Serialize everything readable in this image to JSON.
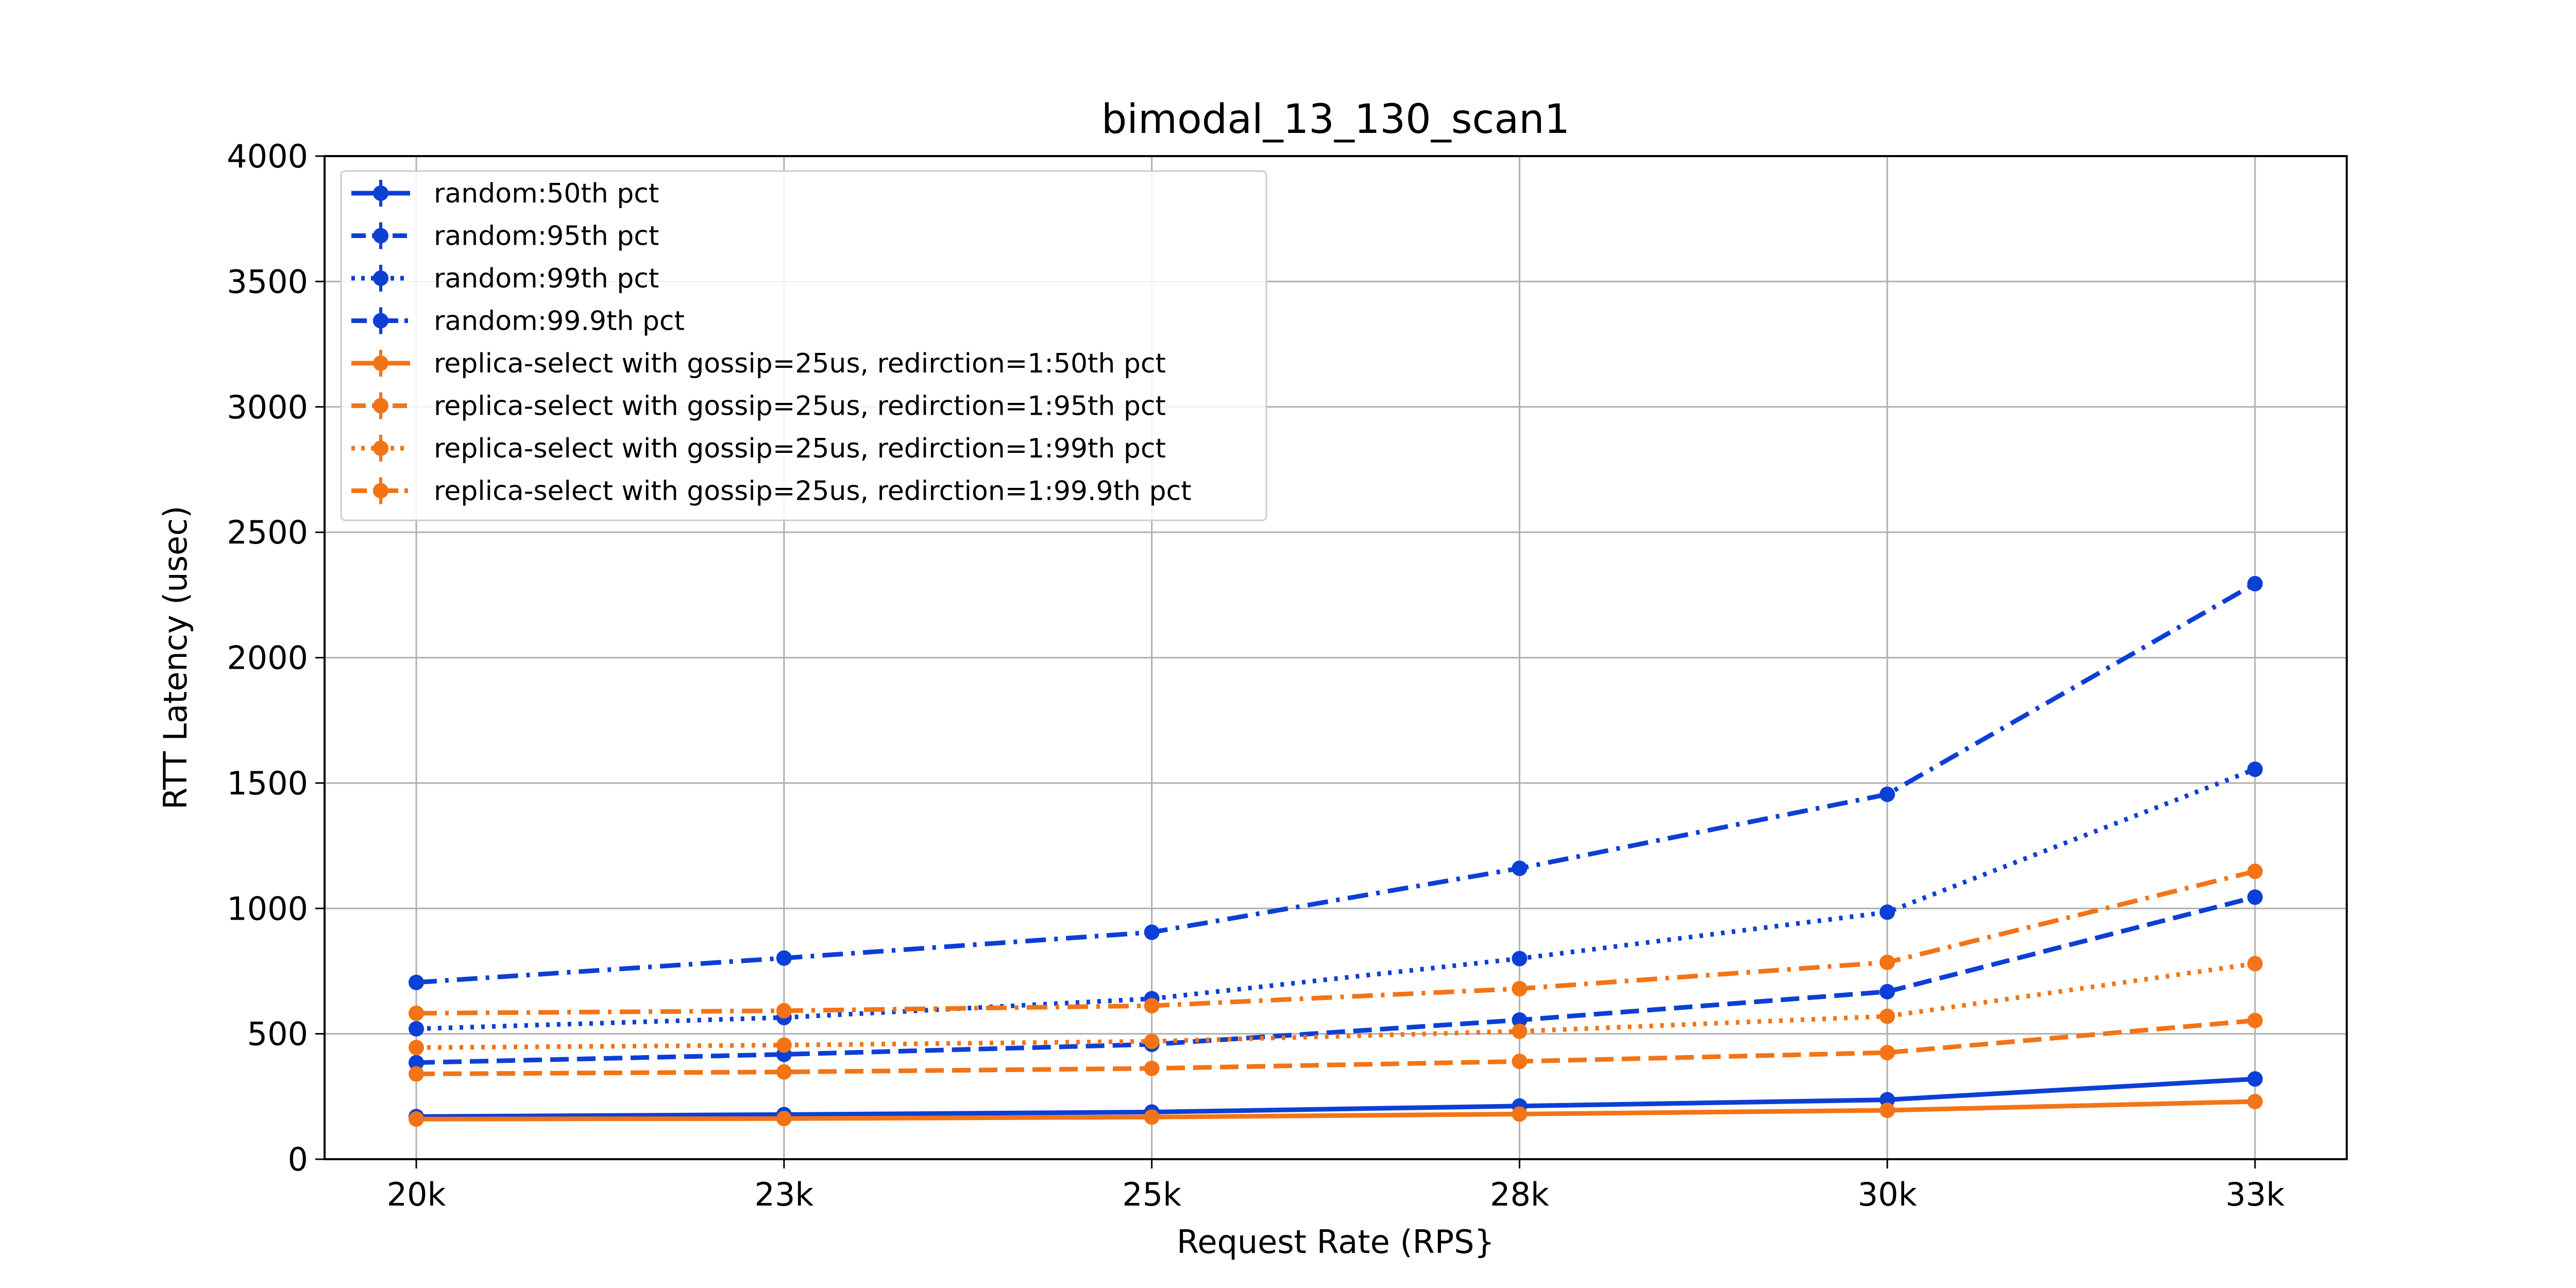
{
  "chart_data": {
    "type": "line",
    "title": "bimodal_13_130_scan1",
    "xlabel": "Request Rate (RPS}",
    "ylabel": "RTT Latency (usec)",
    "categories": [
      "20k",
      "23k",
      "25k",
      "28k",
      "30k",
      "33k"
    ],
    "ylim": [
      0,
      4000
    ],
    "yticks": [
      0,
      500,
      1000,
      1500,
      2000,
      2500,
      3000,
      3500,
      4000
    ],
    "grid": true,
    "legend_position": "upper-left",
    "colors": {
      "random": "#0b3fd6",
      "replica": "#f37416",
      "grid": "#b0b0b0"
    },
    "series": [
      {
        "name": "random:50th pct",
        "group": "random",
        "style": "solid",
        "values": [
          170,
          178,
          188,
          212,
          237,
          320
        ]
      },
      {
        "name": "random:95th pct",
        "group": "random",
        "style": "dashed",
        "values": [
          385,
          418,
          458,
          555,
          668,
          1045
        ]
      },
      {
        "name": "random:99th pct",
        "group": "random",
        "style": "dotted",
        "values": [
          520,
          565,
          640,
          800,
          985,
          1555
        ]
      },
      {
        "name": "random:99.9th pct",
        "group": "random",
        "style": "dashdot",
        "values": [
          705,
          802,
          905,
          1160,
          1455,
          2295
        ]
      },
      {
        "name": "replica-select with gossip=25us, redirction=1:50th pct",
        "group": "replica",
        "style": "solid",
        "values": [
          160,
          162,
          168,
          180,
          195,
          230
        ]
      },
      {
        "name": "replica-select with gossip=25us, redirction=1:95th pct",
        "group": "replica",
        "style": "dashed",
        "values": [
          340,
          348,
          362,
          390,
          425,
          553
        ]
      },
      {
        "name": "replica-select with gossip=25us, redirction=1:99th pct",
        "group": "replica",
        "style": "dotted",
        "values": [
          445,
          455,
          470,
          510,
          570,
          780
        ]
      },
      {
        "name": "replica-select with gossip=25us, redirction=1:99.9th pct",
        "group": "replica",
        "style": "dashdot",
        "values": [
          582,
          592,
          612,
          680,
          785,
          1148
        ]
      }
    ]
  }
}
